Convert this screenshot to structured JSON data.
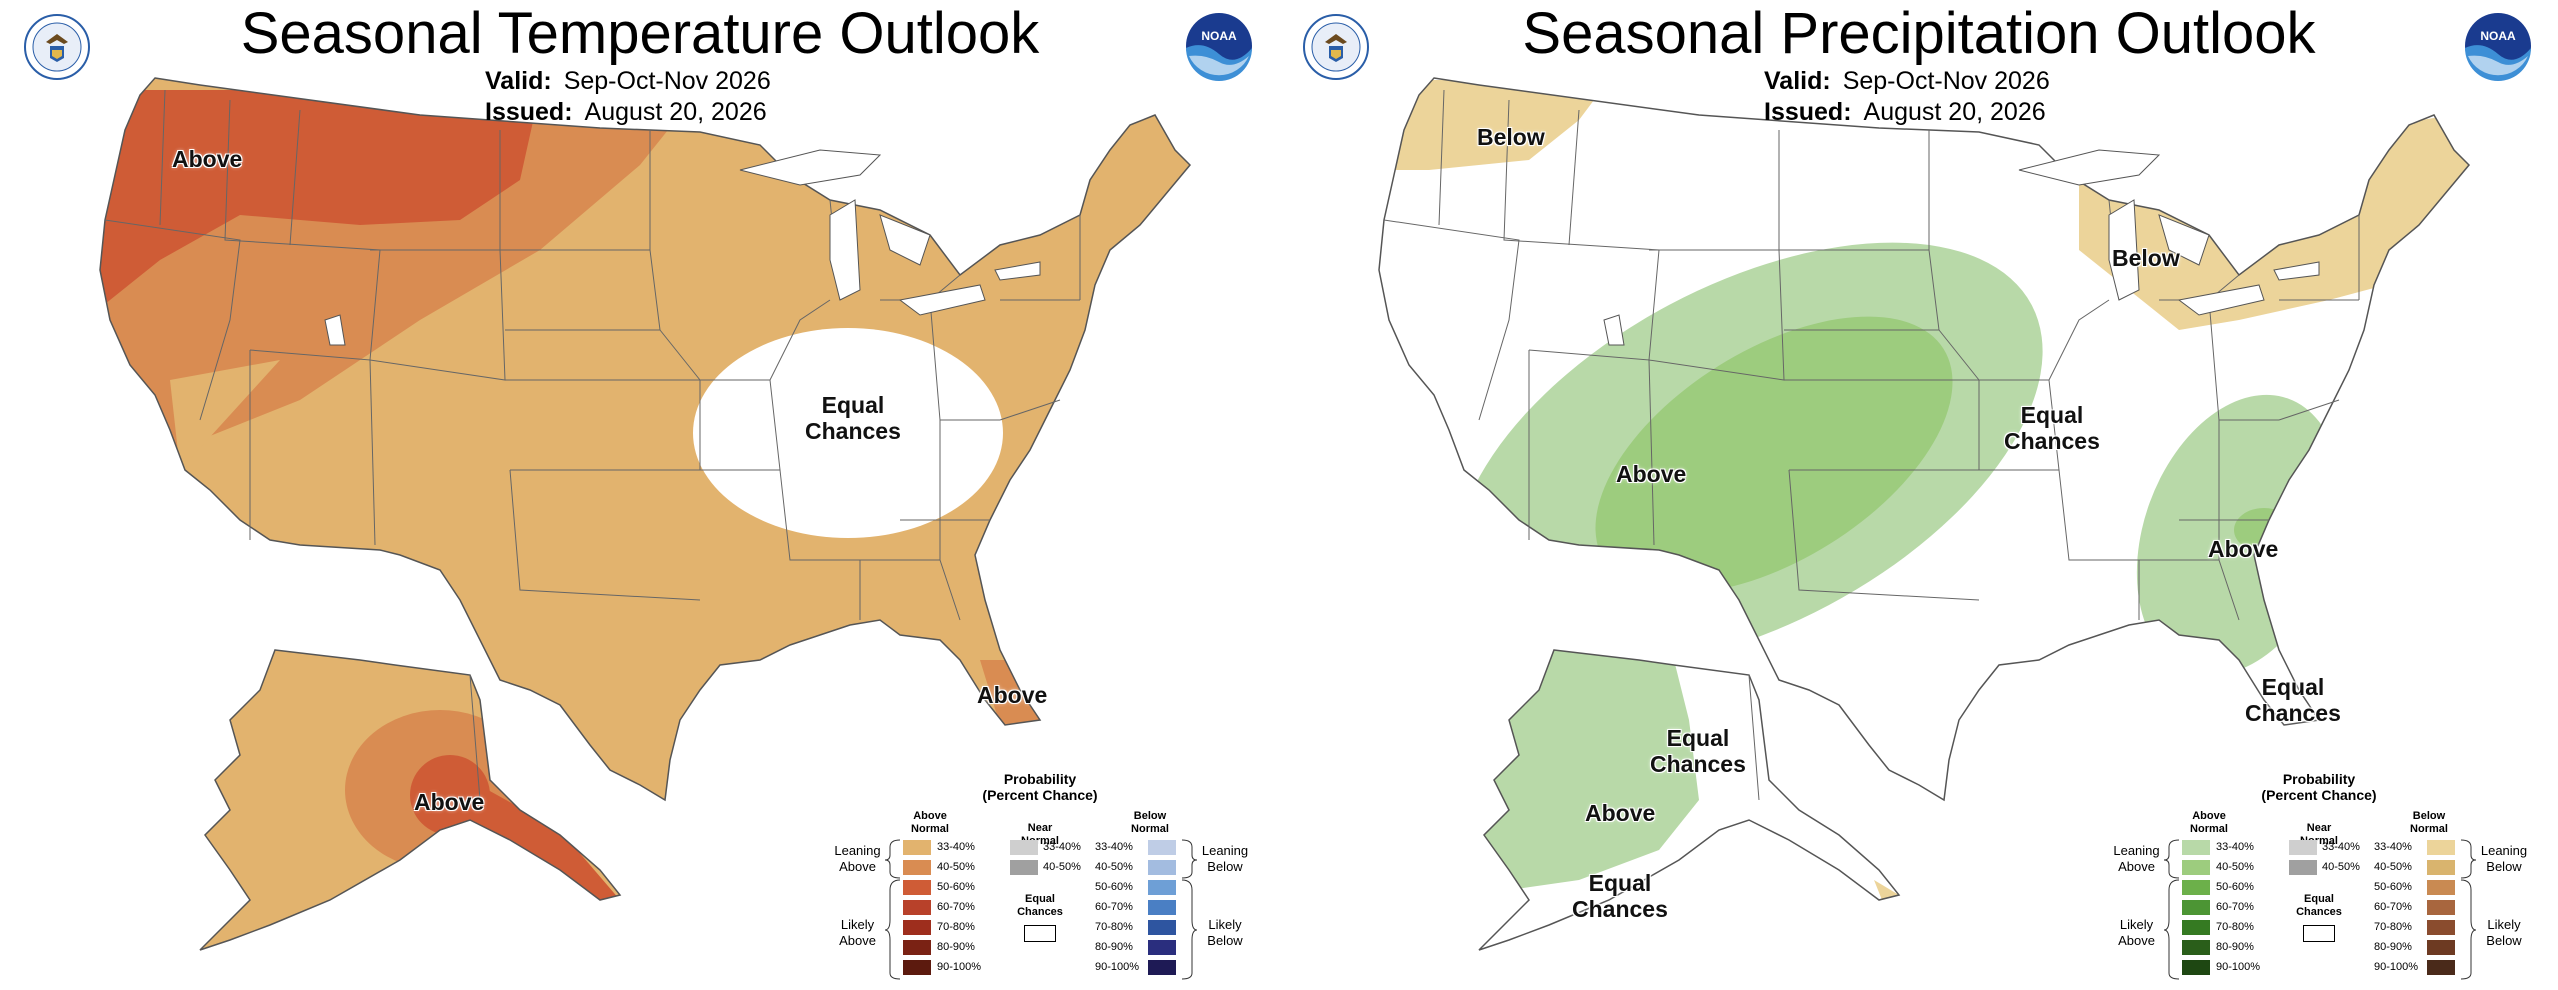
{
  "panels": [
    {
      "title": "Seasonal Temperature Outlook",
      "valid_label": "Valid:",
      "valid_value": "Sep-Oct-Nov 2026",
      "issued_label": "Issued:",
      "issued_value": "August 20, 2026",
      "map_labels": {
        "above_northwest": "Above",
        "equal_chances_midwest_line1": "Equal",
        "equal_chances_midwest_line2": "Chances",
        "above_florida": "Above",
        "above_alaska": "Above"
      }
    },
    {
      "title": "Seasonal Precipitation Outlook",
      "valid_label": "Valid:",
      "valid_value": "Sep-Oct-Nov 2026",
      "issued_label": "Issued:",
      "issued_value": "August 20, 2026",
      "map_labels": {
        "below_northwest": "Below",
        "below_great_lakes": "Below",
        "above_southwest": "Above",
        "equal_chances_central_line1": "Equal",
        "equal_chances_central_line2": "Chances",
        "above_southeast": "Above",
        "equal_chances_florida_line1": "Equal",
        "equal_chances_florida_line2": "Chances",
        "equal_chances_alaska_north_line1": "Equal",
        "equal_chances_alaska_north_line2": "Chances",
        "above_alaska": "Above",
        "equal_chances_alaska_south_line1": "Equal",
        "equal_chances_alaska_south_line2": "Chances"
      }
    }
  ],
  "legend": {
    "title_line1": "Probability",
    "title_line2": "(Percent Chance)",
    "above_head_line1": "Above",
    "above_head_line2": "Normal",
    "near_head_line1": "Near",
    "near_head_line2": "Normal",
    "below_head_line1": "Below",
    "below_head_line2": "Normal",
    "leaning_above_line1": "Leaning",
    "leaning_above_line2": "Above",
    "likely_above_line1": "Likely",
    "likely_above_line2": "Above",
    "leaning_below_line1": "Leaning",
    "leaning_below_line2": "Below",
    "likely_below_line1": "Likely",
    "likely_below_line2": "Below",
    "equal_line1": "Equal",
    "equal_line2": "Chances",
    "ranges": [
      "33-40%",
      "40-50%",
      "50-60%",
      "60-70%",
      "70-80%",
      "80-90%",
      "90-100%"
    ],
    "near_ranges": [
      "33-40%",
      "40-50%"
    ]
  },
  "colors": {
    "temp_above": [
      "#e2b36e",
      "#d98c52",
      "#cf5c36",
      "#b8412a",
      "#9e2e1d",
      "#7a2214",
      "#5c1a0e"
    ],
    "temp_below": [
      "#bfcde6",
      "#a3bce0",
      "#6e9fd6",
      "#4a7fc4",
      "#2e55a0",
      "#2a2e7e",
      "#1e1a55"
    ],
    "precip_above": [
      "#b8d9a8",
      "#9dcc7e",
      "#6cb04a",
      "#4c9534",
      "#357a22",
      "#2a5e1a",
      "#1e4712"
    ],
    "precip_below": [
      "#ecd49a",
      "#d9b46e",
      "#c98a52",
      "#a8663e",
      "#8a4c2e",
      "#6d3a22",
      "#4a2a1a"
    ],
    "near": [
      "#cfcfcf",
      "#a0a0a0"
    ],
    "border": "#555555"
  }
}
